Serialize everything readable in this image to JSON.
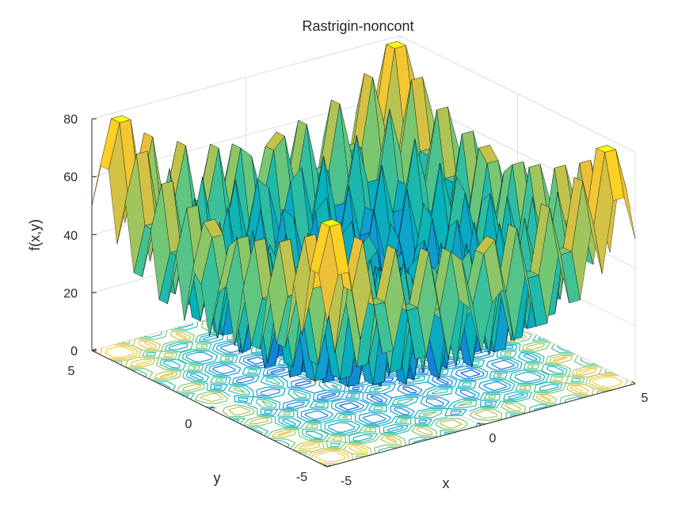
{
  "chart_data": {
    "type": "surface",
    "title": "Rastrigin-noncont",
    "xlabel": "x",
    "ylabel": "y",
    "zlabel": "f(x,y)",
    "xlim": [
      -5,
      5
    ],
    "ylim": [
      -5,
      5
    ],
    "zlim": [
      0,
      80
    ],
    "x_ticks": [
      "-5",
      "0",
      "5"
    ],
    "y_ticks": [
      "-5",
      "0",
      "5"
    ],
    "z_ticks": [
      "0",
      "20",
      "40",
      "60",
      "80"
    ],
    "grid": true,
    "colormap": "parula",
    "contour_at_base": true,
    "grid_resolution": 28,
    "function": "Rastrigin (non-continuous): f(x,y) = sum over i of (z_i^2 - 10 cos(2 pi z_i) + 10), with z_i = x_i if |x_i| < 0.5 else round(2 x_i)/2"
  },
  "colors": {
    "background": "#ffffff",
    "axis": "#262626",
    "grid": "#dcdcdc",
    "edge": "#000000"
  }
}
